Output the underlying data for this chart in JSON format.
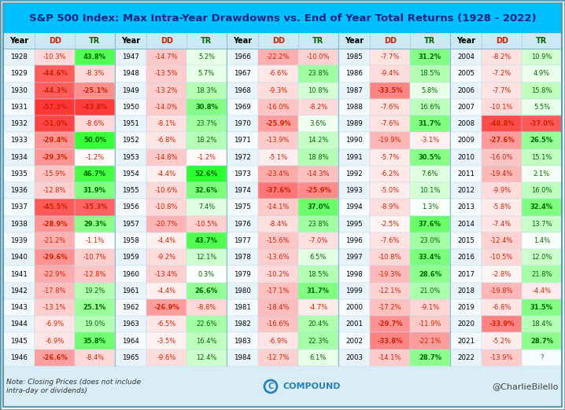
{
  "title": "S&P 500 Index: Max Intra-Year Drawdowns vs. End of Year Total Returns (1928 - 2022)",
  "note_line1": "Note: Closing Prices (does not include",
  "note_line2": "intra-day or dividends)",
  "compound_text": "COMPOUND",
  "twitter_text": "@CharlieBilello",
  "rows": [
    [
      1928,
      -10.3,
      43.8
    ],
    [
      1929,
      -44.6,
      -8.3
    ],
    [
      1930,
      -44.3,
      -25.1
    ],
    [
      1931,
      -57.5,
      -43.8
    ],
    [
      1932,
      -51.0,
      -8.6
    ],
    [
      1933,
      -29.4,
      50.0
    ],
    [
      1934,
      -29.3,
      -1.2
    ],
    [
      1935,
      -15.9,
      46.7
    ],
    [
      1936,
      -12.8,
      31.9
    ],
    [
      1937,
      -45.5,
      -35.3
    ],
    [
      1938,
      -28.9,
      29.3
    ],
    [
      1939,
      -21.2,
      -1.1
    ],
    [
      1940,
      -29.6,
      -10.7
    ],
    [
      1941,
      -22.9,
      -12.8
    ],
    [
      1942,
      -17.8,
      19.2
    ],
    [
      1943,
      -13.1,
      25.1
    ],
    [
      1944,
      -6.9,
      19.0
    ],
    [
      1945,
      -6.9,
      35.8
    ],
    [
      1946,
      -26.6,
      -8.4
    ],
    [
      1947,
      -14.7,
      5.2
    ],
    [
      1948,
      -13.5,
      5.7
    ],
    [
      1949,
      -13.2,
      18.3
    ],
    [
      1950,
      -14.0,
      30.8
    ],
    [
      1951,
      -8.1,
      23.7
    ],
    [
      1952,
      -6.8,
      18.2
    ],
    [
      1953,
      -14.8,
      -1.2
    ],
    [
      1954,
      -4.4,
      52.6
    ],
    [
      1955,
      -10.6,
      32.6
    ],
    [
      1956,
      -10.8,
      7.4
    ],
    [
      1957,
      -20.7,
      -10.5
    ],
    [
      1958,
      -4.4,
      43.7
    ],
    [
      1959,
      -9.2,
      12.1
    ],
    [
      1960,
      -13.4,
      0.3
    ],
    [
      1961,
      -4.4,
      26.6
    ],
    [
      1962,
      -26.9,
      -8.8
    ],
    [
      1963,
      -6.5,
      22.6
    ],
    [
      1964,
      -3.5,
      16.4
    ],
    [
      1965,
      -9.6,
      12.4
    ],
    [
      1966,
      -22.2,
      -10.0
    ],
    [
      1967,
      -6.6,
      23.8
    ],
    [
      1968,
      -9.3,
      10.8
    ],
    [
      1969,
      -16.0,
      -8.2
    ],
    [
      1970,
      -25.9,
      3.6
    ],
    [
      1971,
      -13.9,
      14.2
    ],
    [
      1972,
      -5.1,
      18.8
    ],
    [
      1973,
      -23.4,
      -14.3
    ],
    [
      1974,
      -37.6,
      -25.9
    ],
    [
      1975,
      -14.1,
      37.0
    ],
    [
      1976,
      -8.4,
      23.8
    ],
    [
      1977,
      -15.6,
      -7.0
    ],
    [
      1978,
      -13.6,
      6.5
    ],
    [
      1979,
      -10.2,
      18.5
    ],
    [
      1980,
      -17.1,
      31.7
    ],
    [
      1981,
      -18.4,
      -4.7
    ],
    [
      1982,
      -16.6,
      20.4
    ],
    [
      1983,
      -6.9,
      22.3
    ],
    [
      1984,
      -12.7,
      6.1
    ],
    [
      1985,
      -7.7,
      31.2
    ],
    [
      1986,
      -9.4,
      18.5
    ],
    [
      1987,
      -33.5,
      5.8
    ],
    [
      1988,
      -7.6,
      16.6
    ],
    [
      1989,
      -7.6,
      31.7
    ],
    [
      1990,
      -19.9,
      -3.1
    ],
    [
      1991,
      -5.7,
      30.5
    ],
    [
      1992,
      -6.2,
      7.6
    ],
    [
      1993,
      -5.0,
      10.1
    ],
    [
      1994,
      -8.9,
      1.3
    ],
    [
      1995,
      -2.5,
      37.6
    ],
    [
      1996,
      -7.6,
      23.0
    ],
    [
      1997,
      -10.8,
      33.4
    ],
    [
      1998,
      -19.3,
      28.6
    ],
    [
      1999,
      -12.1,
      21.0
    ],
    [
      2000,
      -17.2,
      -9.1
    ],
    [
      2001,
      -29.7,
      -11.9
    ],
    [
      2002,
      -33.8,
      -22.1
    ],
    [
      2003,
      -14.1,
      28.7
    ],
    [
      2004,
      -8.2,
      10.9
    ],
    [
      2005,
      -7.2,
      4.9
    ],
    [
      2006,
      -7.7,
      15.8
    ],
    [
      2007,
      -10.1,
      5.5
    ],
    [
      2008,
      -48.8,
      -37.0
    ],
    [
      2009,
      -27.6,
      26.5
    ],
    [
      2010,
      -16.0,
      15.1
    ],
    [
      2011,
      -19.4,
      2.1
    ],
    [
      2012,
      -9.9,
      16.0
    ],
    [
      2013,
      -5.8,
      32.4
    ],
    [
      2014,
      -7.4,
      13.7
    ],
    [
      2015,
      -12.4,
      1.4
    ],
    [
      2016,
      -10.5,
      12.0
    ],
    [
      2017,
      -2.8,
      21.8
    ],
    [
      2018,
      -19.8,
      -4.4
    ],
    [
      2019,
      -6.8,
      31.5
    ],
    [
      2020,
      -33.9,
      18.4
    ],
    [
      2021,
      -5.2,
      28.7
    ],
    [
      2022,
      -13.9,
      null
    ]
  ],
  "title_bg": "#00BFFF",
  "title_color": "#1a237e",
  "header_bg": "#cce8f4",
  "table_row_bg1": "#e8f4fa",
  "table_row_bg2": "#f5fbfe",
  "footer_bg": "#d8edf5",
  "border_color": "#5a9ab5",
  "dd_text_color": "#cc2200",
  "tr_pos_color": "#006600",
  "tr_neg_color": "#cc2200",
  "year_color": "#000000",
  "hdr_dd_color": "#cc2200",
  "hdr_tr_color": "#006600",
  "hdr_year_color": "#000000"
}
